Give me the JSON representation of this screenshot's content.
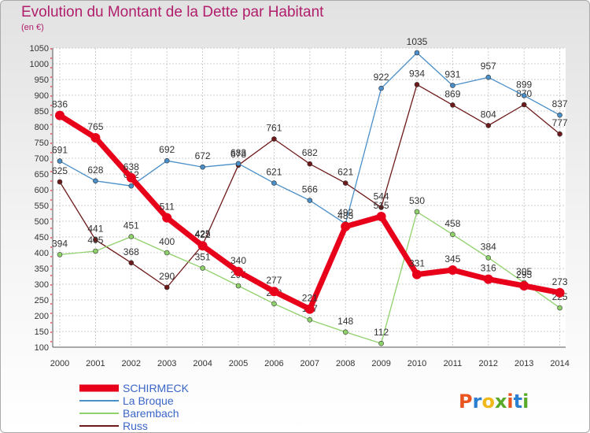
{
  "header": {
    "title": "Evolution du Montant de la Dette par Habitant",
    "unit": "(en €)"
  },
  "logo": {
    "text": "Proxiti"
  },
  "chart_data": {
    "type": "line",
    "title": "Evolution du Montant de la Dette par Habitant",
    "ylabel": "(en €)",
    "xlabel": "",
    "x": [
      "2000",
      "2001",
      "2002",
      "2003",
      "2004",
      "2005",
      "2006",
      "2007",
      "2008",
      "2009",
      "2010",
      "2011",
      "2012",
      "2013",
      "2014"
    ],
    "ylim": [
      100,
      1050
    ],
    "yticks": [
      100,
      150,
      200,
      250,
      300,
      350,
      400,
      450,
      500,
      550,
      600,
      650,
      700,
      750,
      800,
      850,
      900,
      950,
      1000,
      1050
    ],
    "grid": true,
    "legend_position": "bottom-left",
    "series": [
      {
        "name": "Russ",
        "color": "#6e1a1a",
        "values": [
          625,
          441,
          368,
          290,
          425,
          678,
          761,
          682,
          621,
          544,
          934,
          869,
          804,
          870,
          777
        ]
      },
      {
        "name": "Barembach",
        "color": "#8fd16a",
        "values": [
          394,
          405,
          451,
          400,
          351,
          295,
          238,
          187,
          148,
          112,
          530,
          458,
          384,
          305,
          225
        ]
      },
      {
        "name": "La Broque",
        "color": "#4a8fc8",
        "values": [
          691,
          628,
          612,
          692,
          672,
          683,
          621,
          566,
          492,
          922,
          1035,
          931,
          957,
          899,
          837
        ]
      },
      {
        "name": "SCHIRMECK",
        "color": "#e8001b",
        "values": [
          836,
          765,
          638,
          511,
          422,
          340,
          277,
          221,
          483,
          515,
          331,
          345,
          316,
          295,
          273
        ]
      }
    ],
    "legend_order": [
      "SCHIRMECK",
      "La Broque",
      "Barembach",
      "Russ"
    ]
  }
}
